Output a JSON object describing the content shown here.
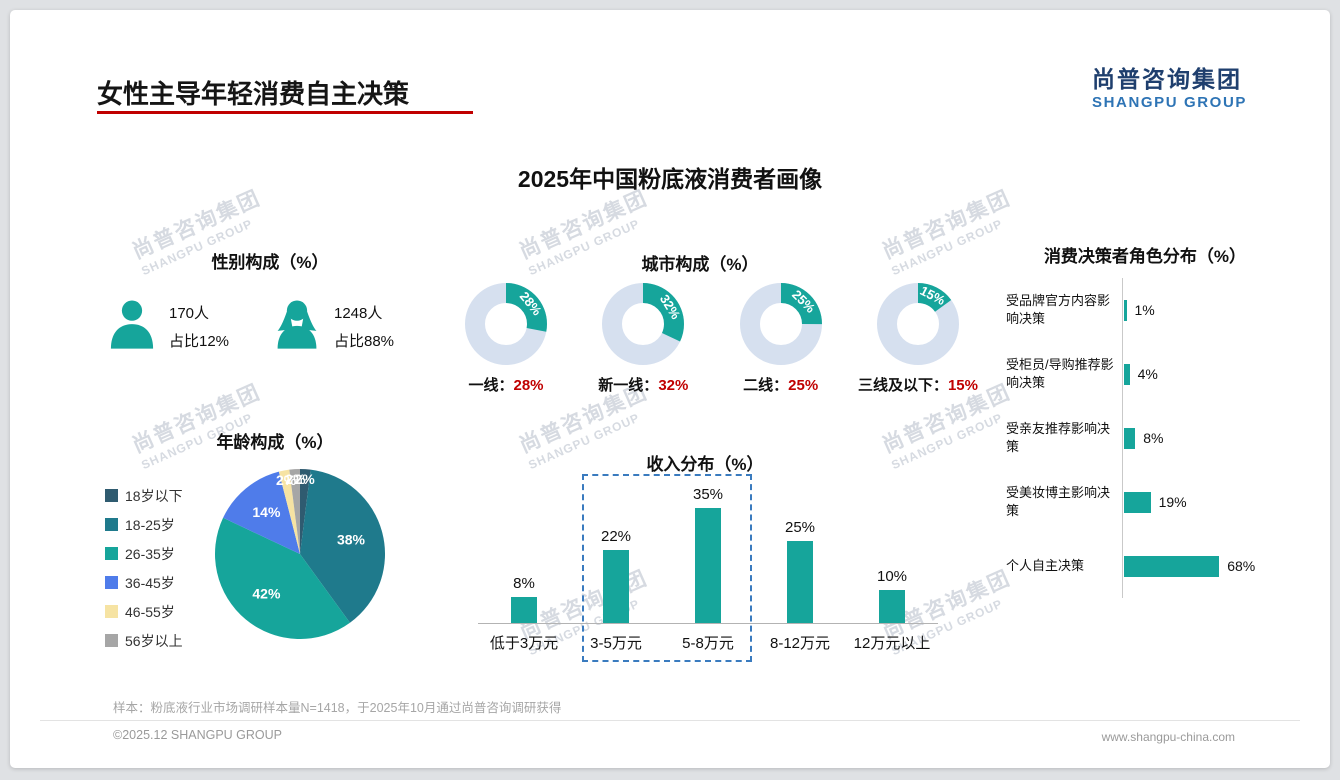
{
  "page": {
    "title": "女性主导年轻消费自主决策",
    "main_title": "2025年中国粉底液消费者画像",
    "note": "样本：粉底液行业市场调研样本量N=1418，于2025年10月通过尚普咨询调研获得",
    "footer_left": "©2025.12 SHANGPU GROUP",
    "footer_right": "www.shangpu-china.com"
  },
  "logo": {
    "cn": "尚普咨询集团",
    "en": "SHANGPU GROUP"
  },
  "watermark": {
    "cn": "尚普咨询集团",
    "en": "SHANGPU GROUP"
  },
  "colors": {
    "teal": "#16A59B",
    "donut_track": "#D6E0EF",
    "accent_red": "#C00000",
    "highlight_border": "#3A7BBF"
  },
  "gender": {
    "title": "性别构成（%）",
    "male": {
      "count": "170人",
      "share": "占比12%"
    },
    "female": {
      "count": "1248人",
      "share": "占比88%"
    }
  },
  "chart_data": [
    {
      "id": "age_pie",
      "type": "pie",
      "title": "年龄构成（%）",
      "categories": [
        "18岁以下",
        "18-25岁",
        "26-35岁",
        "36-45岁",
        "46-55岁",
        "56岁以上"
      ],
      "values": [
        2,
        38,
        42,
        14,
        2,
        2
      ],
      "labels": [
        "2%",
        "38%",
        "42%",
        "14%",
        "2%",
        "2%"
      ],
      "colors": [
        "#2F5B70",
        "#1F7A8C",
        "#16A59B",
        "#4F7CEA",
        "#F6E3A3",
        "#A6A6A6"
      ],
      "legend_position": "left"
    },
    {
      "id": "city_donuts",
      "type": "donut",
      "title": "城市构成（%）",
      "items": [
        {
          "label": "一线",
          "value": 28,
          "display": "28%"
        },
        {
          "label": "新一线",
          "value": 32,
          "display": "32%"
        },
        {
          "label": "二线",
          "value": 25,
          "display": "25%"
        },
        {
          "label": "三线及以下",
          "value": 15,
          "display": "15%"
        }
      ]
    },
    {
      "id": "income_bar",
      "type": "bar",
      "title": "收入分布（%）",
      "categories": [
        "低于3万元",
        "3-5万元",
        "5-8万元",
        "8-12万元",
        "12万元以上"
      ],
      "values": [
        8,
        22,
        35,
        25,
        10
      ],
      "value_labels": [
        "8%",
        "22%",
        "35%",
        "25%",
        "10%"
      ],
      "highlight_categories": [
        "3-5万元",
        "5-8万元"
      ],
      "ylim": [
        0,
        40
      ]
    },
    {
      "id": "decision_hbar",
      "type": "bar-horizontal",
      "title": "消费决策者角色分布（%）",
      "categories": [
        "受品牌官方内容影响决策",
        "受柜员/导购推荐影响决策",
        "受亲友推荐影响决策",
        "受美妆博主影响决策",
        "个人自主决策"
      ],
      "values": [
        1,
        4,
        8,
        19,
        68
      ],
      "value_labels": [
        "1%",
        "4%",
        "8%",
        "19%",
        "68%"
      ]
    }
  ]
}
